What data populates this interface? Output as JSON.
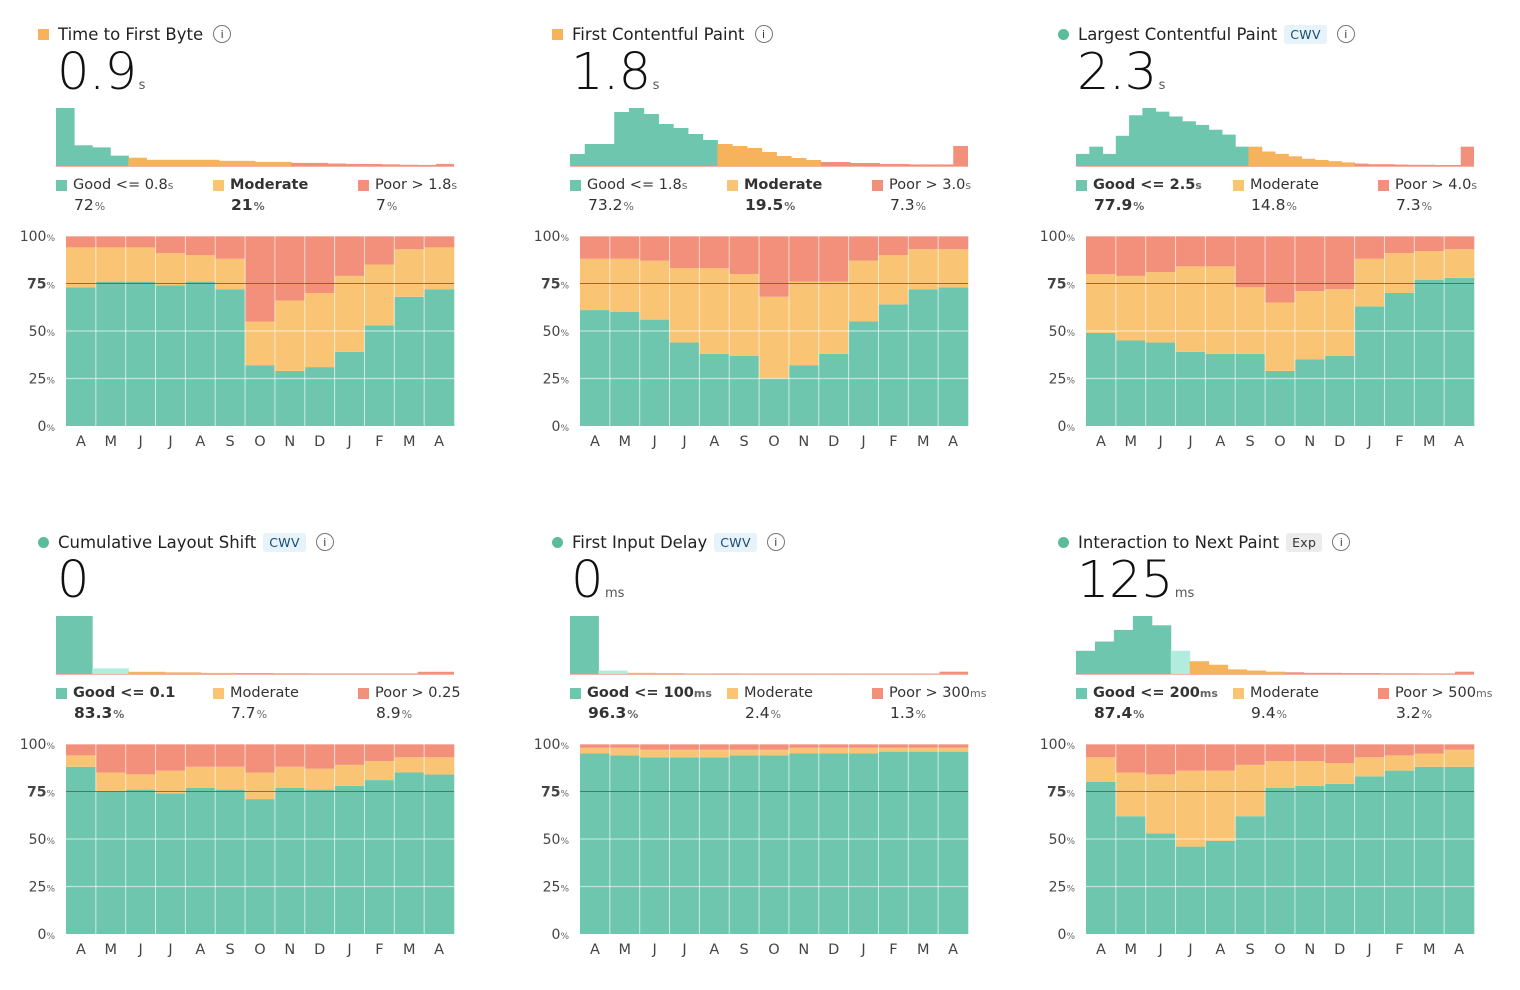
{
  "colors": {
    "good": "#6fc6af",
    "good_dark": "#5bbc9b",
    "good_light": "#b2ecdf",
    "moderate": "#f9c574",
    "moderate_dark": "#f7b35c",
    "poor": "#f2907c",
    "grid": "#d8f1ea",
    "target_line": "#555555"
  },
  "months": [
    "A",
    "M",
    "J",
    "J",
    "A",
    "S",
    "O",
    "N",
    "D",
    "J",
    "F",
    "M",
    "A"
  ],
  "axis_ticks": [
    "100%",
    "75%",
    "50%",
    "25%",
    "0%"
  ],
  "panels": [
    {
      "title": "Time to First Byte",
      "dot": "square",
      "dot_color": "#f7b35c",
      "badge": "",
      "info": "i",
      "value": "0.9",
      "unit": "s",
      "legend": [
        {
          "label": "Good <= 0.8",
          "unit": "s",
          "value": "72",
          "value_unit": "%",
          "bold": false
        },
        {
          "label": "Moderate",
          "unit": "",
          "value": "21",
          "value_unit": "%",
          "bold": true
        },
        {
          "label": "Poor > 1.8",
          "unit": "s",
          "value": "7",
          "value_unit": "%",
          "bold": false
        }
      ]
    },
    {
      "title": "First Contentful Paint",
      "dot": "square",
      "dot_color": "#f7b35c",
      "badge": "",
      "info": "i",
      "value": "1.8",
      "unit": "s",
      "legend": [
        {
          "label": "Good <= 1.8",
          "unit": "s",
          "value": "73.2",
          "value_unit": "%",
          "bold": false
        },
        {
          "label": "Moderate",
          "unit": "",
          "value": "19.5",
          "value_unit": "%",
          "bold": true
        },
        {
          "label": "Poor > 3.0",
          "unit": "s",
          "value": "7.3",
          "value_unit": "%",
          "bold": false
        }
      ]
    },
    {
      "title": "Largest Contentful Paint",
      "dot": "circle",
      "dot_color": "#5bbc9b",
      "badge": "CWV",
      "badge_type": "cwv",
      "info": "i",
      "value": "2.3",
      "unit": "s",
      "legend": [
        {
          "label": "Good <= 2.5",
          "unit": "s",
          "value": "77.9",
          "value_unit": "%",
          "bold": true
        },
        {
          "label": "Moderate",
          "unit": "",
          "value": "14.8",
          "value_unit": "%",
          "bold": false
        },
        {
          "label": "Poor > 4.0",
          "unit": "s",
          "value": "7.3",
          "value_unit": "%",
          "bold": false
        }
      ]
    },
    {
      "title": "Cumulative Layout Shift",
      "dot": "circle",
      "dot_color": "#5bbc9b",
      "badge": "CWV",
      "badge_type": "cwv",
      "info": "i",
      "value": "0",
      "unit": "",
      "legend": [
        {
          "label": "Good <= 0.1",
          "unit": "",
          "value": "83.3",
          "value_unit": "%",
          "bold": true
        },
        {
          "label": "Moderate",
          "unit": "",
          "value": "7.7",
          "value_unit": "%",
          "bold": false
        },
        {
          "label": "Poor > 0.25",
          "unit": "",
          "value": "8.9",
          "value_unit": "%",
          "bold": false
        }
      ]
    },
    {
      "title": "First Input Delay",
      "dot": "circle",
      "dot_color": "#5bbc9b",
      "badge": "CWV",
      "badge_type": "cwv",
      "info": "i",
      "value": "0",
      "unit": "ms",
      "legend": [
        {
          "label": "Good <= 100",
          "unit": "ms",
          "value": "96.3",
          "value_unit": "%",
          "bold": true
        },
        {
          "label": "Moderate",
          "unit": "",
          "value": "2.4",
          "value_unit": "%",
          "bold": false
        },
        {
          "label": "Poor > 300",
          "unit": "ms",
          "value": "1.3",
          "value_unit": "%",
          "bold": false
        }
      ]
    },
    {
      "title": "Interaction to Next Paint",
      "dot": "circle",
      "dot_color": "#5bbc9b",
      "badge": "Exp",
      "badge_type": "exp",
      "info": "i",
      "value": "125",
      "unit": "ms",
      "legend": [
        {
          "label": "Good <= 200",
          "unit": "ms",
          "value": "87.4",
          "value_unit": "%",
          "bold": true
        },
        {
          "label": "Moderate",
          "unit": "",
          "value": "9.4",
          "value_unit": "%",
          "bold": false
        },
        {
          "label": "Poor > 500",
          "unit": "ms",
          "value": "3.2",
          "value_unit": "%",
          "bold": false
        }
      ]
    }
  ],
  "chart_data": [
    {
      "type": "bar",
      "title": "Time to First Byte",
      "ylim": [
        0,
        100
      ],
      "categories": [
        "A",
        "M",
        "J",
        "J",
        "A",
        "S",
        "O",
        "N",
        "D",
        "J",
        "F",
        "M",
        "A"
      ],
      "target": 75,
      "series": [
        {
          "name": "Good",
          "values": [
            73,
            76,
            76,
            74,
            76,
            72,
            32,
            29,
            31,
            39,
            53,
            68,
            72
          ]
        },
        {
          "name": "Moderate",
          "values": [
            21,
            18,
            18,
            17,
            14,
            16,
            23,
            37,
            39,
            40,
            32,
            25,
            22
          ]
        },
        {
          "name": "Poor",
          "values": [
            6,
            6,
            6,
            9,
            10,
            12,
            45,
            34,
            30,
            21,
            15,
            7,
            6
          ]
        }
      ],
      "histogram": [
        {
          "name": "Good",
          "values": [
            28,
            10,
            9,
            5
          ]
        },
        {
          "name": "Moderate",
          "values": [
            4,
            3,
            3,
            3,
            3,
            2.5,
            2.5,
            2,
            2
          ]
        },
        {
          "name": "Poor",
          "values": [
            1.5,
            1.5,
            1.2,
            1,
            1,
            0.8,
            0.6,
            0.5,
            1
          ]
        }
      ]
    },
    {
      "type": "bar",
      "title": "First Contentful Paint",
      "ylim": [
        0,
        100
      ],
      "categories": [
        "A",
        "M",
        "J",
        "J",
        "A",
        "S",
        "O",
        "N",
        "D",
        "J",
        "F",
        "M",
        "A"
      ],
      "target": 75,
      "series": [
        {
          "name": "Good",
          "values": [
            61,
            60,
            56,
            44,
            38,
            37,
            25,
            32,
            38,
            55,
            64,
            72,
            73
          ]
        },
        {
          "name": "Moderate",
          "values": [
            27,
            28,
            31,
            39,
            45,
            43,
            43,
            44,
            38,
            32,
            26,
            21,
            20
          ]
        },
        {
          "name": "Poor",
          "values": [
            12,
            12,
            13,
            17,
            17,
            20,
            32,
            24,
            24,
            13,
            10,
            7,
            7
          ]
        }
      ],
      "histogram": [
        {
          "name": "Good",
          "values": [
            6,
            11,
            11,
            27,
            29,
            26,
            21,
            19,
            16,
            13
          ]
        },
        {
          "name": "Moderate",
          "values": [
            11,
            10,
            9,
            7,
            5,
            4,
            3
          ]
        },
        {
          "name": "Poor",
          "values": [
            2,
            2,
            1.5,
            1.5,
            1,
            1,
            0.8,
            0.8,
            0.8,
            10
          ]
        }
      ]
    },
    {
      "type": "bar",
      "title": "Largest Contentful Paint",
      "ylim": [
        0,
        100
      ],
      "categories": [
        "A",
        "M",
        "J",
        "J",
        "A",
        "S",
        "O",
        "N",
        "D",
        "J",
        "F",
        "M",
        "A"
      ],
      "target": 75,
      "series": [
        {
          "name": "Good",
          "values": [
            49,
            45,
            44,
            39,
            38,
            38,
            29,
            35,
            37,
            63,
            70,
            77,
            78
          ]
        },
        {
          "name": "Moderate",
          "values": [
            31,
            34,
            37,
            45,
            46,
            35,
            36,
            36,
            35,
            25,
            21,
            15,
            15
          ]
        },
        {
          "name": "Poor",
          "values": [
            20,
            21,
            19,
            16,
            16,
            27,
            35,
            29,
            28,
            12,
            9,
            8,
            7
          ]
        }
      ],
      "histogram": [
        {
          "name": "Good",
          "values": [
            10,
            16,
            10,
            25,
            42,
            48,
            45,
            41,
            37,
            34,
            30,
            26,
            16
          ]
        },
        {
          "name": "Moderate",
          "values": [
            16,
            12,
            10,
            8,
            6,
            5,
            4,
            3
          ]
        },
        {
          "name": "Poor",
          "values": [
            2,
            1.5,
            1.5,
            1.2,
            1,
            1,
            0.8,
            0.8,
            16
          ]
        }
      ]
    },
    {
      "type": "bar",
      "title": "Cumulative Layout Shift",
      "ylim": [
        0,
        100
      ],
      "categories": [
        "A",
        "M",
        "J",
        "J",
        "A",
        "S",
        "O",
        "N",
        "D",
        "J",
        "F",
        "M",
        "A"
      ],
      "target": 75,
      "series": [
        {
          "name": "Good",
          "values": [
            88,
            75,
            76,
            74,
            77,
            76,
            71,
            77,
            76,
            78,
            81,
            85,
            84
          ]
        },
        {
          "name": "Moderate",
          "values": [
            6,
            10,
            8,
            12,
            11,
            12,
            14,
            11,
            11,
            11,
            10,
            8,
            9
          ]
        },
        {
          "name": "Poor",
          "values": [
            6,
            15,
            16,
            14,
            12,
            12,
            15,
            12,
            13,
            11,
            9,
            7,
            7
          ]
        }
      ],
      "histogram": [
        {
          "name": "Good",
          "values": [
            52,
            5
          ]
        },
        {
          "name": "Moderate",
          "values": [
            2,
            1.5,
            1
          ]
        },
        {
          "name": "Poor",
          "values": [
            0.8,
            0.6,
            0.5,
            0.5,
            0.5,
            2
          ]
        }
      ]
    },
    {
      "type": "bar",
      "title": "First Input Delay",
      "ylim": [
        0,
        100
      ],
      "categories": [
        "A",
        "M",
        "J",
        "J",
        "A",
        "S",
        "O",
        "N",
        "D",
        "J",
        "F",
        "M",
        "A"
      ],
      "target": 75,
      "series": [
        {
          "name": "Good",
          "values": [
            95,
            94,
            93,
            93,
            93,
            94,
            94,
            95,
            95,
            95,
            96,
            96,
            96
          ]
        },
        {
          "name": "Moderate",
          "values": [
            3,
            4,
            4,
            4,
            4,
            3,
            3,
            3,
            3,
            3,
            2,
            2,
            2
          ]
        },
        {
          "name": "Poor",
          "values": [
            2,
            2,
            3,
            3,
            3,
            3,
            3,
            2,
            2,
            2,
            2,
            2,
            2
          ]
        }
      ],
      "histogram": [
        {
          "name": "Good",
          "values": [
            50,
            3
          ]
        },
        {
          "name": "Moderate",
          "values": [
            1,
            0.8,
            0.5
          ]
        },
        {
          "name": "Poor",
          "values": [
            0.5,
            0.4,
            0.4,
            0.4,
            0.4,
            0.4,
            0.4,
            0.4,
            2
          ]
        }
      ]
    },
    {
      "type": "bar",
      "title": "Interaction to Next Paint",
      "ylim": [
        0,
        100
      ],
      "categories": [
        "A",
        "M",
        "J",
        "J",
        "A",
        "S",
        "O",
        "N",
        "D",
        "J",
        "F",
        "M",
        "A"
      ],
      "target": 75,
      "series": [
        {
          "name": "Good",
          "values": [
            80,
            62,
            53,
            46,
            49,
            62,
            77,
            78,
            79,
            83,
            86,
            88,
            88
          ]
        },
        {
          "name": "Moderate",
          "values": [
            13,
            23,
            31,
            40,
            37,
            27,
            14,
            13,
            11,
            10,
            8,
            7,
            9
          ]
        },
        {
          "name": "Poor",
          "values": [
            7,
            15,
            16,
            14,
            14,
            11,
            9,
            9,
            10,
            7,
            6,
            5,
            3
          ]
        }
      ],
      "histogram": [
        {
          "name": "Good",
          "values": [
            20,
            28,
            38,
            50,
            42,
            20
          ]
        },
        {
          "name": "Moderate",
          "values": [
            11,
            8,
            4,
            3,
            2
          ]
        },
        {
          "name": "Poor",
          "values": [
            1.5,
            1,
            1,
            0.8,
            0.8,
            0.6,
            0.6,
            0.5,
            0.5,
            2
          ]
        }
      ]
    }
  ]
}
